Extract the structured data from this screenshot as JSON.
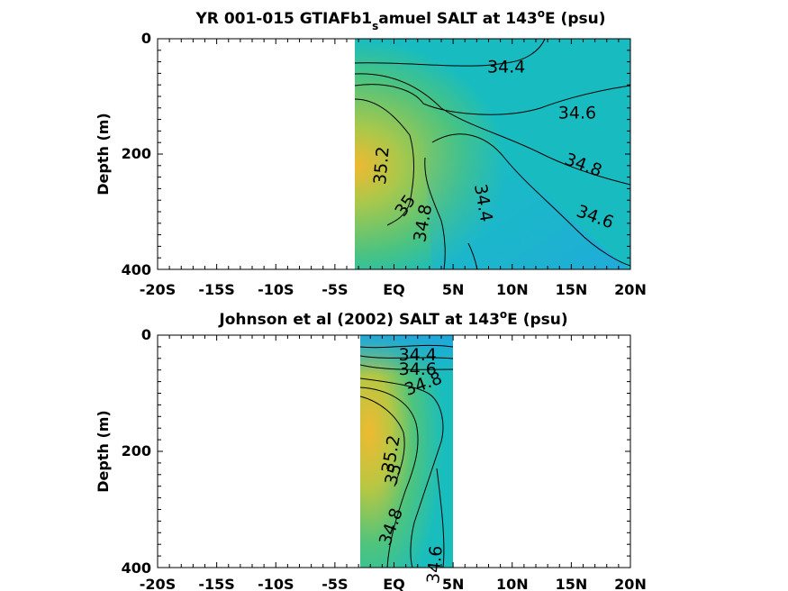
{
  "chart_data": [
    {
      "type": "heatmap",
      "title": "YR 001-015 GTIAFb1",
      "title_sub": "s",
      "title_rest": "amuel SALT at 143",
      "title_sup": "o",
      "title_end": "E (psu)",
      "ylabel": "Depth (m)",
      "xlabel": "",
      "x_ticks": [
        "-20S",
        "-15S",
        "-10S",
        "-5S",
        "EQ",
        "5N",
        "10N",
        "15N",
        "20N"
      ],
      "y_ticks": [
        "0",
        "200",
        "400"
      ],
      "xlim": [
        -20,
        20
      ],
      "ylim": [
        400,
        0
      ],
      "data_extent": {
        "x": [
          -3,
          20
        ],
        "y": [
          0,
          400
        ]
      },
      "contour_levels": [
        34.4,
        34.6,
        34.8,
        35,
        35.2
      ],
      "contour_labels": [
        {
          "text": "34.4",
          "x": 9.5,
          "y": 50,
          "rotation": 0
        },
        {
          "text": "34.6",
          "x": 15.5,
          "y": 130,
          "rotation": 0
        },
        {
          "text": "34.8",
          "x": 16,
          "y": 220,
          "rotation": 20
        },
        {
          "text": "34.6",
          "x": 17,
          "y": 310,
          "rotation": 20
        },
        {
          "text": "34.4",
          "x": 7.5,
          "y": 285,
          "rotation": 80
        },
        {
          "text": "35.2",
          "x": -1,
          "y": 220,
          "rotation": -85
        },
        {
          "text": "35",
          "x": 1,
          "y": 290,
          "rotation": -55
        },
        {
          "text": "34.8",
          "x": 2.5,
          "y": 320,
          "rotation": -80
        }
      ],
      "colorscale": [
        "#21a4dc",
        "#12bcc6",
        "#34c390",
        "#86c85c",
        "#c7c43d",
        "#f0b931"
      ]
    },
    {
      "type": "heatmap",
      "title": "Johnson et al (2002) SALT at 143",
      "title_sup": "o",
      "title_end": "E (psu)",
      "ylabel": "Depth (m)",
      "xlabel": "",
      "x_ticks": [
        "-20S",
        "-15S",
        "-10S",
        "-5S",
        "EQ",
        "5N",
        "10N",
        "15N",
        "20N"
      ],
      "y_ticks": [
        "0",
        "200",
        "400"
      ],
      "xlim": [
        -20,
        20
      ],
      "ylim": [
        400,
        0
      ],
      "data_extent": {
        "x": [
          -2.5,
          5.2
        ],
        "y": [
          0,
          400
        ]
      },
      "contour_levels": [
        34.4,
        34.6,
        34.8,
        35,
        35.2
      ],
      "contour_labels": [
        {
          "text": "34.4",
          "x": 2,
          "y": 35,
          "rotation": 0
        },
        {
          "text": "34.6",
          "x": 2,
          "y": 60,
          "rotation": 0
        },
        {
          "text": "34.8",
          "x": 2.5,
          "y": 85,
          "rotation": -20
        },
        {
          "text": "35.2",
          "x": -0.2,
          "y": 205,
          "rotation": -80
        },
        {
          "text": "35",
          "x": 0,
          "y": 240,
          "rotation": -75
        },
        {
          "text": "34.8",
          "x": -0.2,
          "y": 330,
          "rotation": -70
        },
        {
          "text": "34.6",
          "x": 3.5,
          "y": 395,
          "rotation": -85
        }
      ],
      "colorscale": [
        "#21a4dc",
        "#12bcc6",
        "#34c390",
        "#86c85c",
        "#c7c43d",
        "#f0b931"
      ]
    }
  ]
}
